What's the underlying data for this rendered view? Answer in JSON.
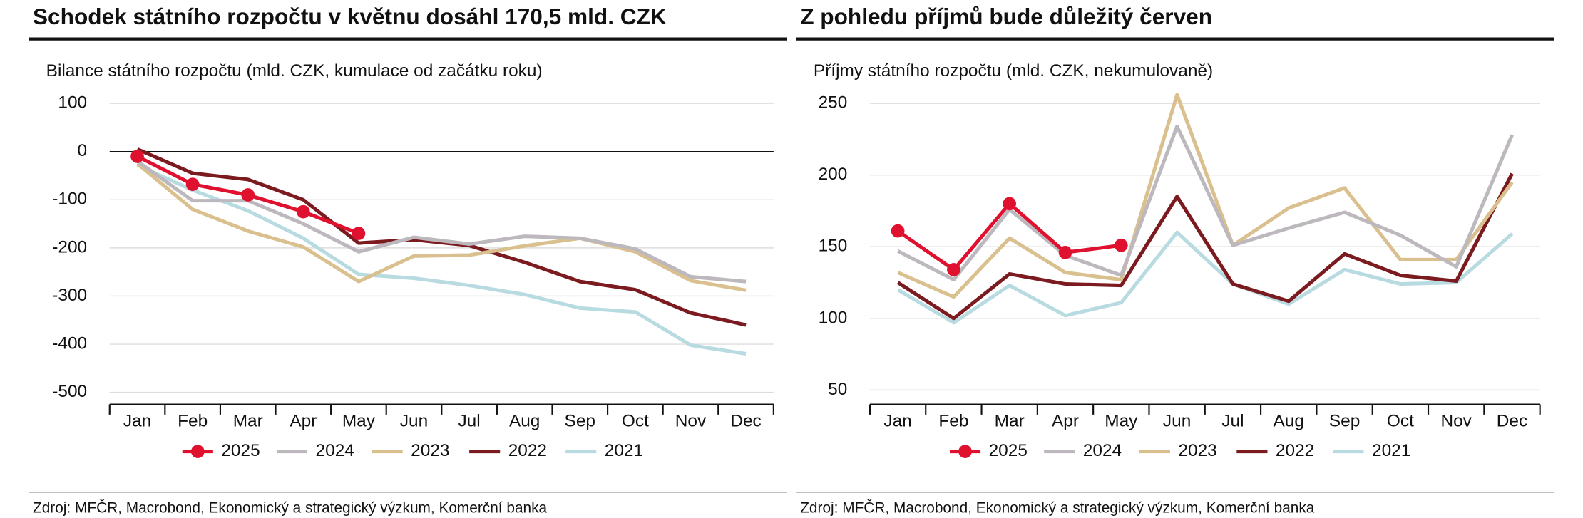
{
  "chart_data": [
    {
      "type": "line",
      "title": "Schodek státního rozpočtu v květnu dosáhl 170,5 mld. CZK",
      "subtitle": "Bilance státního rozpočtu (mld. CZK, kumulace od začátku roku)",
      "source": "Zdroj: MFČR, Macrobond, Ekonomický a strategický výzkum, Komerční banka",
      "categories": [
        "Jan",
        "Feb",
        "Mar",
        "Apr",
        "May",
        "Jun",
        "Jul",
        "Aug",
        "Sep",
        "Oct",
        "Nov",
        "Dec"
      ],
      "ylim": [
        -525,
        100
      ],
      "yticks": [
        -500,
        -400,
        -300,
        -200,
        -100,
        0,
        100
      ],
      "grid": true,
      "zero_line": true,
      "legend": "bottom",
      "series": [
        {
          "name": "2025",
          "color": "#e0102f",
          "markers": true,
          "values": [
            -10,
            -68,
            -90,
            -125,
            -170,
            null,
            null,
            null,
            null,
            null,
            null,
            null
          ]
        },
        {
          "name": "2024",
          "color": "#bdb8bd",
          "values": [
            -20,
            -102,
            -102,
            -150,
            -208,
            -178,
            -192,
            -176,
            -180,
            -202,
            -260,
            -270
          ]
        },
        {
          "name": "2023",
          "color": "#d9c08e",
          "values": [
            -25,
            -120,
            -165,
            -198,
            -270,
            -217,
            -215,
            -196,
            -180,
            -208,
            -268,
            -288
          ]
        },
        {
          "name": "2022",
          "color": "#7b1a1f",
          "values": [
            5,
            -45,
            -58,
            -100,
            -190,
            -183,
            -195,
            -230,
            -270,
            -287,
            -335,
            -360
          ]
        },
        {
          "name": "2021",
          "color": "#b7dbe0",
          "values": [
            -28,
            -80,
            -123,
            -180,
            -255,
            -263,
            -278,
            -297,
            -325,
            -333,
            -402,
            -420
          ]
        }
      ]
    },
    {
      "type": "line",
      "title": "Z pohledu příjmů bude důležitý červen",
      "subtitle": "Příjmy státního rozpočtu (mld. CZK, nekumulovaně)",
      "source": "Zdroj: MFČR, Macrobond, Ekonomický a strategický výzkum, Komerční banka",
      "categories": [
        "Jan",
        "Feb",
        "Mar",
        "Apr",
        "May",
        "Jun",
        "Jul",
        "Aug",
        "Sep",
        "Oct",
        "Nov",
        "Dec"
      ],
      "ylim": [
        40,
        250
      ],
      "yticks": [
        50,
        100,
        150,
        200,
        250
      ],
      "grid": true,
      "zero_line": false,
      "legend": "bottom",
      "series": [
        {
          "name": "2025",
          "color": "#e0102f",
          "markers": true,
          "values": [
            161,
            134,
            180,
            146,
            151,
            null,
            null,
            null,
            null,
            null,
            null,
            null
          ]
        },
        {
          "name": "2024",
          "color": "#bdb8bd",
          "values": [
            147,
            127,
            176,
            144,
            130,
            234,
            151,
            163,
            174,
            158,
            136,
            228
          ]
        },
        {
          "name": "2023",
          "color": "#d9c08e",
          "values": [
            132,
            115,
            156,
            132,
            127,
            256,
            151,
            177,
            191,
            141,
            141,
            195
          ]
        },
        {
          "name": "2022",
          "color": "#7b1a1f",
          "values": [
            125,
            100,
            131,
            124,
            123,
            185,
            124,
            112,
            145,
            130,
            126,
            201
          ]
        },
        {
          "name": "2021",
          "color": "#b7dbe0",
          "values": [
            120,
            97,
            123,
            102,
            111,
            160,
            124,
            110,
            134,
            124,
            125,
            159
          ]
        }
      ]
    }
  ]
}
